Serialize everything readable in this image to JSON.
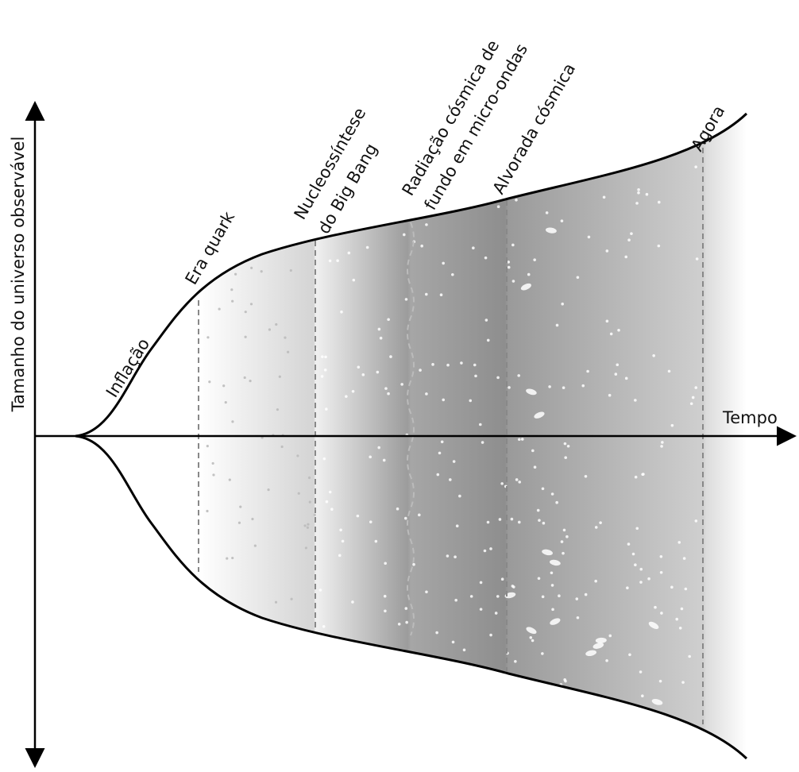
{
  "axes": {
    "y_label": "Tamanho do universo observável",
    "x_label": "Tempo"
  },
  "epochs": [
    {
      "lines": [
        "Inflação"
      ]
    },
    {
      "lines": [
        "Era quark"
      ]
    },
    {
      "lines": [
        "Nucleossíntese",
        "do Big Bang"
      ]
    },
    {
      "lines": [
        "Radiação cósmica de",
        "fundo em micro-ondas"
      ]
    },
    {
      "lines": [
        "Alvorada cósmica"
      ]
    },
    {
      "lines": [
        "Agora"
      ]
    }
  ]
}
